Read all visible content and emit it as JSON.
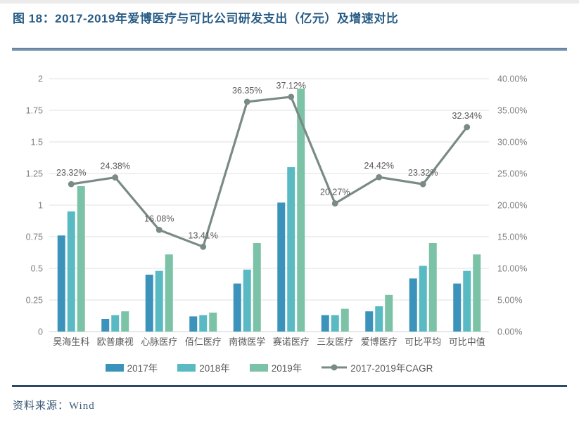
{
  "page": {
    "title": "图 18：2017-2019年爱博医疗与可比公司研发支出（亿元）及增速对比",
    "source": "资料来源：Wind"
  },
  "colors": {
    "title_text": "#275c85",
    "source_text": "#3b5a78",
    "axis_text": "#7f7f7f",
    "category_text": "#595959",
    "data_label_text": "#595959",
    "grid_line": "#e7e7e7",
    "zero_line": "#d9d9d9",
    "bar_2017": "#3b93bb",
    "bar_2018": "#5abac4",
    "bar_2019": "#7cc2a6",
    "cagr_line": "#7a8a86"
  },
  "legend": [
    {
      "label": "2017年",
      "type": "bar",
      "color": "#3b93bb"
    },
    {
      "label": "2018年",
      "type": "bar",
      "color": "#5abac4"
    },
    {
      "label": "2019年",
      "type": "bar",
      "color": "#7cc2a6"
    },
    {
      "label": "2017-2019年CAGR",
      "type": "line",
      "color": "#7a8a86"
    }
  ],
  "chart_data": {
    "type": "bar",
    "subtype": "grouped bars with secondary-axis line (CAGR)",
    "title": "2017-2019年爱博医疗与可比公司研发支出（亿元）及增速对比",
    "categories": [
      "昊海生科",
      "欧普康视",
      "心脉医疗",
      "佰仁医疗",
      "南微医学",
      "赛诺医疗",
      "三友医疗",
      "爱博医疗",
      "可比平均",
      "可比中值"
    ],
    "series": [
      {
        "name": "2017年",
        "type": "bar",
        "axis": "left",
        "color": "#3b93bb",
        "values": [
          0.76,
          0.1,
          0.45,
          0.12,
          0.38,
          1.02,
          0.13,
          0.16,
          0.42,
          0.38
        ]
      },
      {
        "name": "2018年",
        "type": "bar",
        "axis": "left",
        "color": "#5abac4",
        "values": [
          0.95,
          0.13,
          0.48,
          0.13,
          0.49,
          1.3,
          0.13,
          0.2,
          0.52,
          0.48
        ]
      },
      {
        "name": "2019年",
        "type": "bar",
        "axis": "left",
        "color": "#7cc2a6",
        "values": [
          1.15,
          0.16,
          0.61,
          0.15,
          0.7,
          1.92,
          0.18,
          0.29,
          0.7,
          0.61
        ]
      },
      {
        "name": "2017-2019年CAGR",
        "type": "line",
        "axis": "right",
        "color": "#7a8a86",
        "values_pct": [
          23.32,
          24.38,
          16.08,
          13.41,
          36.35,
          37.12,
          20.27,
          24.42,
          23.32,
          32.34
        ],
        "labels": [
          "23.32%",
          "24.38%",
          "16.08%",
          "13.41%",
          "36.35%",
          "37.12%",
          "20.27%",
          "24.42%",
          "23.32%",
          "32.34%"
        ]
      }
    ],
    "left_axis": {
      "min": 0,
      "max": 2,
      "step": 0.25,
      "ticks": [
        "2",
        "1.75",
        "1.5",
        "1.25",
        "1",
        "0.75",
        "0.5",
        "0.25",
        "0"
      ]
    },
    "right_axis": {
      "min_pct": 0,
      "max_pct": 40,
      "step_pct": 5,
      "ticks": [
        "40.00%",
        "35.00%",
        "30.00%",
        "25.00%",
        "20.00%",
        "15.00%",
        "10.00%",
        "5.00%",
        "0.00%"
      ]
    },
    "grid": true,
    "legend_position": "bottom"
  }
}
